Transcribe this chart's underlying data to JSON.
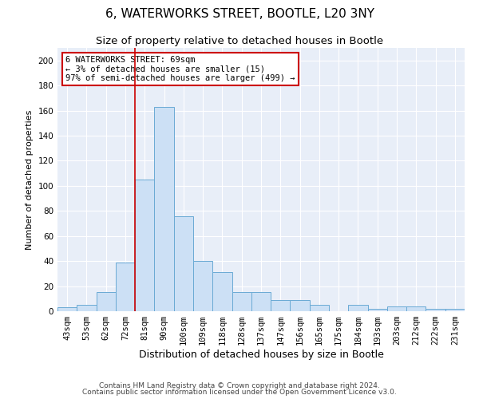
{
  "title1": "6, WATERWORKS STREET, BOOTLE, L20 3NY",
  "title2": "Size of property relative to detached houses in Bootle",
  "xlabel": "Distribution of detached houses by size in Bootle",
  "ylabel": "Number of detached properties",
  "categories": [
    "43sqm",
    "53sqm",
    "62sqm",
    "72sqm",
    "81sqm",
    "90sqm",
    "100sqm",
    "109sqm",
    "118sqm",
    "128sqm",
    "137sqm",
    "147sqm",
    "156sqm",
    "165sqm",
    "175sqm",
    "184sqm",
    "193sqm",
    "203sqm",
    "212sqm",
    "222sqm",
    "231sqm"
  ],
  "values": [
    3,
    5,
    15,
    39,
    105,
    163,
    76,
    40,
    31,
    15,
    15,
    9,
    9,
    5,
    0,
    5,
    2,
    4,
    4,
    2,
    2
  ],
  "bar_color": "#cce0f5",
  "bar_edge_color": "#6aaad4",
  "vline_color": "#cc0000",
  "annotation_text": "6 WATERWORKS STREET: 69sqm\n← 3% of detached houses are smaller (15)\n97% of semi-detached houses are larger (499) →",
  "annotation_box_color": "white",
  "annotation_box_edge_color": "#cc0000",
  "ylim": [
    0,
    210
  ],
  "yticks": [
    0,
    20,
    40,
    60,
    80,
    100,
    120,
    140,
    160,
    180,
    200
  ],
  "bg_color": "#e8eef8",
  "footer1": "Contains HM Land Registry data © Crown copyright and database right 2024.",
  "footer2": "Contains public sector information licensed under the Open Government Licence v3.0.",
  "title1_fontsize": 11,
  "title2_fontsize": 9.5,
  "xlabel_fontsize": 9,
  "ylabel_fontsize": 8,
  "tick_fontsize": 7.5,
  "footer_fontsize": 6.5,
  "annot_fontsize": 7.5
}
